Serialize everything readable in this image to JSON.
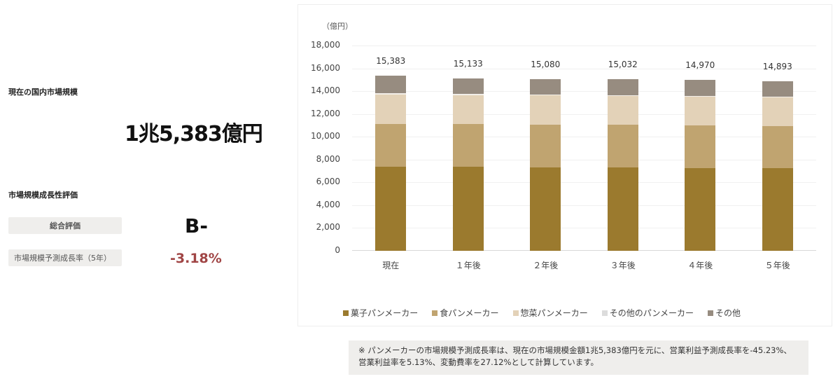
{
  "left": {
    "market_size_label": "現在の国内市場規模",
    "market_size_value": "1兆5,383億円",
    "growth_eval_label": "市場規模成長性評価",
    "overall_eval_label": "総合評価",
    "overall_eval_value": "B-",
    "growth_rate_label": "市場規模予測成長率（5年）",
    "growth_rate_value": "-3.18%",
    "growth_rate_color": "#a04545"
  },
  "chart_data": {
    "type": "bar",
    "stacked": true,
    "title": "",
    "unit_label": "（億円）",
    "xlabel": "",
    "ylabel": "億円",
    "ylim": [
      0,
      18000
    ],
    "yticks": [
      "18,000",
      "16,000",
      "14,000",
      "12,000",
      "10,000",
      "8,000",
      "6,000",
      "4,000",
      "2,000",
      "0"
    ],
    "categories": [
      "現在",
      "１年後",
      "２年後",
      "３年後",
      "４年後",
      "５年後"
    ],
    "totals": [
      15383,
      15133,
      15080,
      15032,
      14970,
      14893
    ],
    "total_labels": [
      "15,383",
      "15,133",
      "15,080",
      "15,032",
      "14,970",
      "14,893"
    ],
    "series": [
      {
        "name": "菓子パンメーカー",
        "color": "#9b7a2e",
        "values": [
          7370,
          7360,
          7330,
          7310,
          7280,
          7240
        ]
      },
      {
        "name": "食パンメーカー",
        "color": "#c0a470",
        "values": [
          3760,
          3740,
          3730,
          3720,
          3700,
          3690
        ]
      },
      {
        "name": "惣菜パンメーカー",
        "color": "#e3d2b8",
        "values": [
          2600,
          2560,
          2550,
          2540,
          2530,
          2500
        ]
      },
      {
        "name": "その他のパンメーカー",
        "color": "#f2eee8",
        "values": [
          100,
          95,
          95,
          95,
          90,
          90
        ]
      },
      {
        "name": "その他",
        "color": "#978c80",
        "values": [
          1553,
          1378,
          1375,
          1367,
          1370,
          1373
        ]
      }
    ],
    "legend_position": "bottom",
    "grid": true
  },
  "footnote": "※ パンメーカーの市場規模予測成長率は、現在の市場規模金額1兆5,383億円を元に、営業利益予測成長率を-45.23%、営業利益率を5.13%、変動費率を27.12%として計算しています。"
}
